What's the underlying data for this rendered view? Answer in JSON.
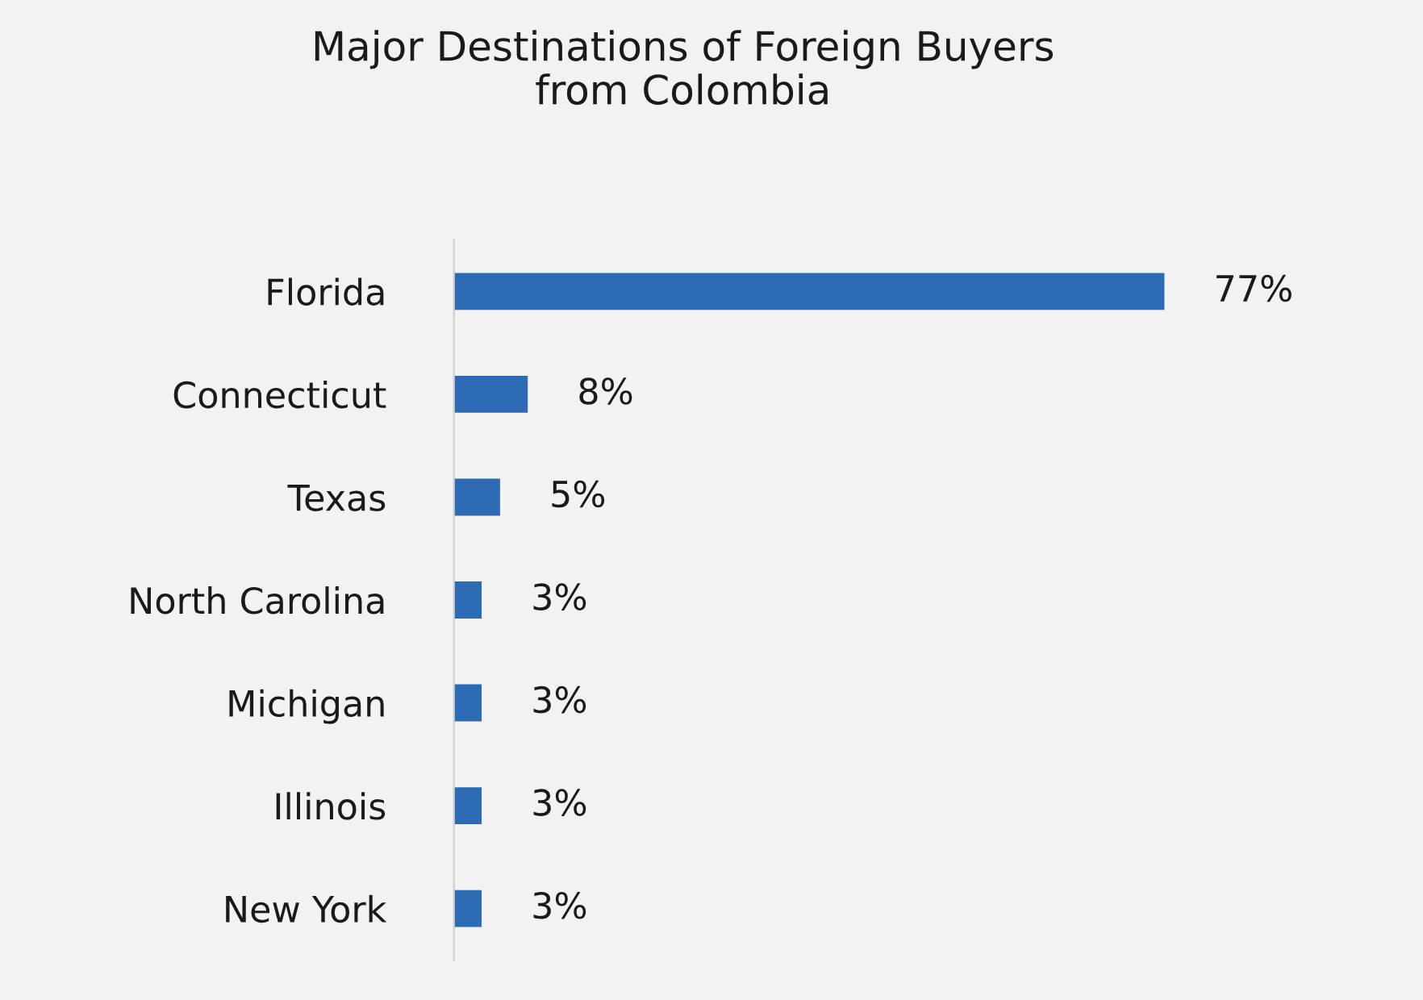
{
  "chart_data": {
    "type": "bar",
    "orientation": "horizontal",
    "title": "Major Destinations of Foreign Buyers\nfrom Colombia",
    "categories": [
      "Florida",
      "Connecticut",
      "Texas",
      "North Carolina",
      "Michigan",
      "Illinois",
      "New York"
    ],
    "values": [
      77,
      8,
      5,
      3,
      3,
      3,
      3
    ],
    "value_labels": [
      "77%",
      "8%",
      "5%",
      "3%",
      "3%",
      "3%",
      "3%"
    ],
    "color": "#2e6bb5",
    "tick_labels": "y",
    "grid": false,
    "legend": false
  }
}
